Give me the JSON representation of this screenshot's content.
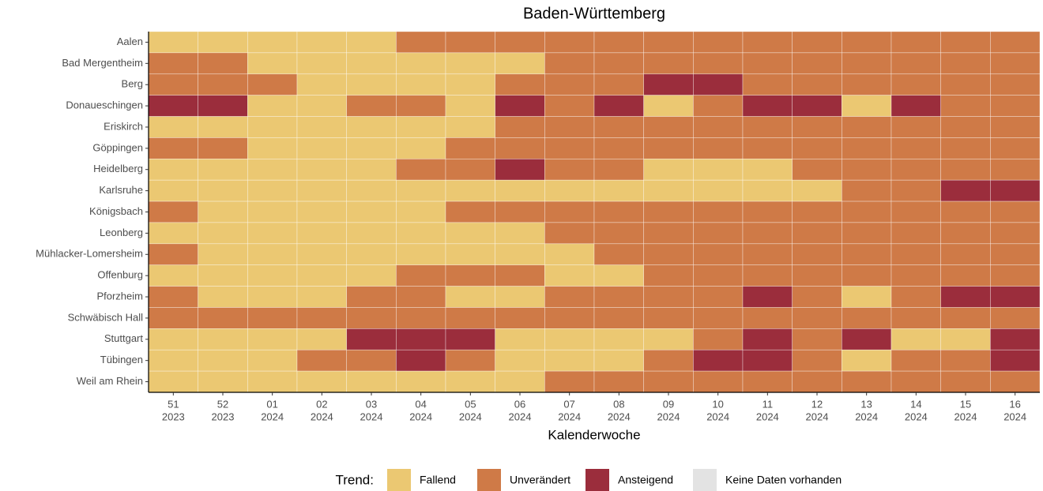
{
  "chart_data": {
    "type": "heatmap",
    "title": "Baden-Württemberg",
    "x_label": "Kalenderwoche",
    "categories": [
      [
        "51",
        "2023"
      ],
      [
        "52",
        "2023"
      ],
      [
        "01",
        "2024"
      ],
      [
        "02",
        "2024"
      ],
      [
        "03",
        "2024"
      ],
      [
        "04",
        "2024"
      ],
      [
        "05",
        "2024"
      ],
      [
        "06",
        "2024"
      ],
      [
        "07",
        "2024"
      ],
      [
        "08",
        "2024"
      ],
      [
        "09",
        "2024"
      ],
      [
        "10",
        "2024"
      ],
      [
        "11",
        "2024"
      ],
      [
        "12",
        "2024"
      ],
      [
        "13",
        "2024"
      ],
      [
        "14",
        "2024"
      ],
      [
        "15",
        "2024"
      ],
      [
        "16",
        "2024"
      ]
    ],
    "rows": [
      "Aalen",
      "Bad Mergentheim",
      "Berg",
      "Donaueschingen",
      "Eriskirch",
      "Göppingen",
      "Heidelberg",
      "Karlsruhe",
      "Königsbach",
      "Leonberg",
      "Mühlacker-Lomersheim",
      "Offenburg",
      "Pforzheim",
      "Schwäbisch Hall",
      "Stuttgart",
      "Tübingen",
      "Weil am Rhein"
    ],
    "values": [
      [
        0,
        0,
        0,
        0,
        0,
        1,
        1,
        1,
        1,
        1,
        1,
        1,
        1,
        1,
        1,
        1,
        1,
        1
      ],
      [
        1,
        1,
        0,
        0,
        0,
        0,
        0,
        0,
        1,
        1,
        1,
        1,
        1,
        1,
        1,
        1,
        1,
        1
      ],
      [
        1,
        1,
        1,
        0,
        0,
        0,
        0,
        1,
        1,
        1,
        2,
        2,
        1,
        1,
        1,
        1,
        1,
        1
      ],
      [
        2,
        2,
        0,
        0,
        1,
        1,
        0,
        2,
        1,
        2,
        0,
        1,
        2,
        2,
        0,
        2,
        1,
        1
      ],
      [
        0,
        0,
        0,
        0,
        0,
        0,
        0,
        1,
        1,
        1,
        1,
        1,
        1,
        1,
        1,
        1,
        1,
        1
      ],
      [
        1,
        1,
        0,
        0,
        0,
        0,
        1,
        1,
        1,
        1,
        1,
        1,
        1,
        1,
        1,
        1,
        1,
        1
      ],
      [
        0,
        0,
        0,
        0,
        0,
        1,
        1,
        2,
        1,
        1,
        0,
        0,
        0,
        1,
        1,
        1,
        1,
        1
      ],
      [
        0,
        0,
        0,
        0,
        0,
        0,
        0,
        0,
        0,
        0,
        0,
        0,
        0,
        0,
        1,
        1,
        2,
        2
      ],
      [
        1,
        0,
        0,
        0,
        0,
        0,
        1,
        1,
        1,
        1,
        1,
        1,
        1,
        1,
        1,
        1,
        1,
        1
      ],
      [
        0,
        0,
        0,
        0,
        0,
        0,
        0,
        0,
        1,
        1,
        1,
        1,
        1,
        1,
        1,
        1,
        1,
        1
      ],
      [
        1,
        0,
        0,
        0,
        0,
        0,
        0,
        0,
        0,
        1,
        1,
        1,
        1,
        1,
        1,
        1,
        1,
        1
      ],
      [
        0,
        0,
        0,
        0,
        0,
        1,
        1,
        1,
        0,
        0,
        1,
        1,
        1,
        1,
        1,
        1,
        1,
        1
      ],
      [
        1,
        0,
        0,
        0,
        1,
        1,
        0,
        0,
        1,
        1,
        1,
        1,
        2,
        1,
        0,
        1,
        2,
        2
      ],
      [
        1,
        1,
        1,
        1,
        1,
        1,
        1,
        1,
        1,
        1,
        1,
        1,
        1,
        1,
        1,
        1,
        1,
        1
      ],
      [
        0,
        0,
        0,
        0,
        2,
        2,
        2,
        0,
        0,
        0,
        0,
        1,
        2,
        1,
        2,
        0,
        0,
        2
      ],
      [
        0,
        0,
        0,
        1,
        1,
        2,
        1,
        0,
        0,
        0,
        1,
        2,
        2,
        1,
        0,
        1,
        1,
        2
      ],
      [
        0,
        0,
        0,
        0,
        0,
        0,
        0,
        0,
        1,
        1,
        1,
        1,
        1,
        1,
        1,
        1,
        1,
        1
      ]
    ],
    "legend": {
      "title": "Trend:",
      "entries": [
        {
          "name": "Fallend",
          "color": "#ebc872"
        },
        {
          "name": "Unverändert",
          "color": "#cf7a47"
        },
        {
          "name": "Ansteigend",
          "color": "#9b2d3c"
        },
        {
          "name": "Keine Daten vorhanden",
          "color": "#e3e3e3"
        }
      ]
    }
  }
}
